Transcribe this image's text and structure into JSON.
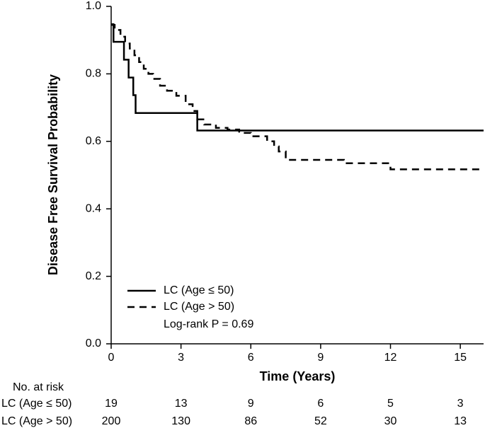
{
  "chart_data": {
    "type": "step",
    "xlabel": "Time (Years)",
    "ylabel": "Disease Free Survival Probability",
    "xlim": [
      0,
      16
    ],
    "ylim": [
      0,
      1
    ],
    "xticks": [
      0,
      3,
      6,
      9,
      12,
      15
    ],
    "yticks": [
      {
        "value": 0,
        "label": "0.0"
      },
      {
        "value": 0.2,
        "label": "0.2"
      },
      {
        "value": 0.4,
        "label": "0.4"
      },
      {
        "value": 0.6,
        "label": "0.6"
      },
      {
        "value": 0.8,
        "label": "0.8"
      },
      {
        "value": 1,
        "label": "1.0"
      }
    ],
    "series": [
      {
        "name": "LC (Age ≤ 50)",
        "color": "#000000",
        "dash": "solid",
        "x": [
          0,
          0.1,
          0.55,
          0.75,
          0.95,
          1.05,
          3.7
        ],
        "values": [
          0.947,
          0.895,
          0.842,
          0.789,
          0.737,
          0.684,
          0.632
        ]
      },
      {
        "name": "LC (Age > 50)",
        "color": "#000000",
        "dash": "dashed",
        "x": [
          0,
          0.15,
          0.4,
          0.6,
          0.8,
          1.0,
          1.2,
          1.4,
          1.6,
          1.8,
          2.1,
          2.4,
          2.8,
          3.2,
          3.5,
          3.7,
          4.0,
          4.5,
          5.0,
          5.5,
          6.0,
          6.7,
          7.0,
          7.2,
          7.5,
          10.0,
          12.0
        ],
        "values": [
          0.945,
          0.93,
          0.91,
          0.89,
          0.875,
          0.855,
          0.835,
          0.815,
          0.8,
          0.785,
          0.765,
          0.75,
          0.735,
          0.71,
          0.69,
          0.665,
          0.65,
          0.64,
          0.635,
          0.625,
          0.615,
          0.6,
          0.585,
          0.57,
          0.545,
          0.535,
          0.517
        ]
      }
    ],
    "annotation": "Log-rank P = 0.69",
    "risk_table": {
      "title": "No. at risk",
      "rows": [
        {
          "name": "LC (Age ≤ 50)",
          "values": [
            19,
            13,
            9,
            6,
            5,
            3
          ]
        },
        {
          "name": "LC (Age > 50)",
          "values": [
            200,
            130,
            86,
            52,
            30,
            13
          ]
        }
      ]
    }
  }
}
